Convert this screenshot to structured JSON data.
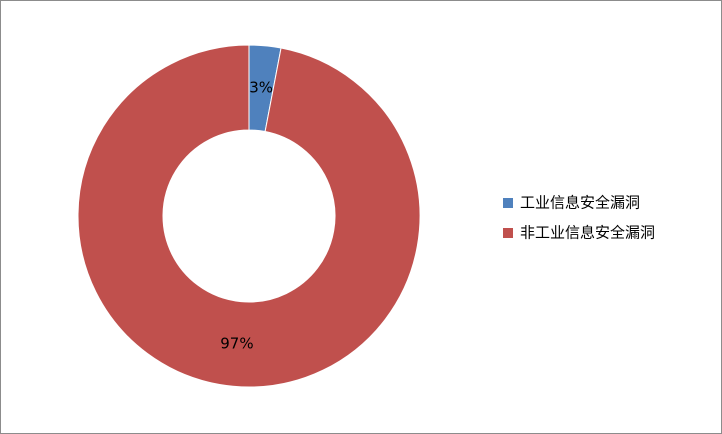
{
  "chart_data": {
    "type": "donut",
    "categories": [
      "工业信息安全漏洞",
      "非工业信息安全漏洞"
    ],
    "values": [
      3,
      97
    ],
    "value_labels": [
      "3%",
      "97%"
    ],
    "colors": [
      "#4f81bd",
      "#c0504d"
    ],
    "legend": "right"
  }
}
